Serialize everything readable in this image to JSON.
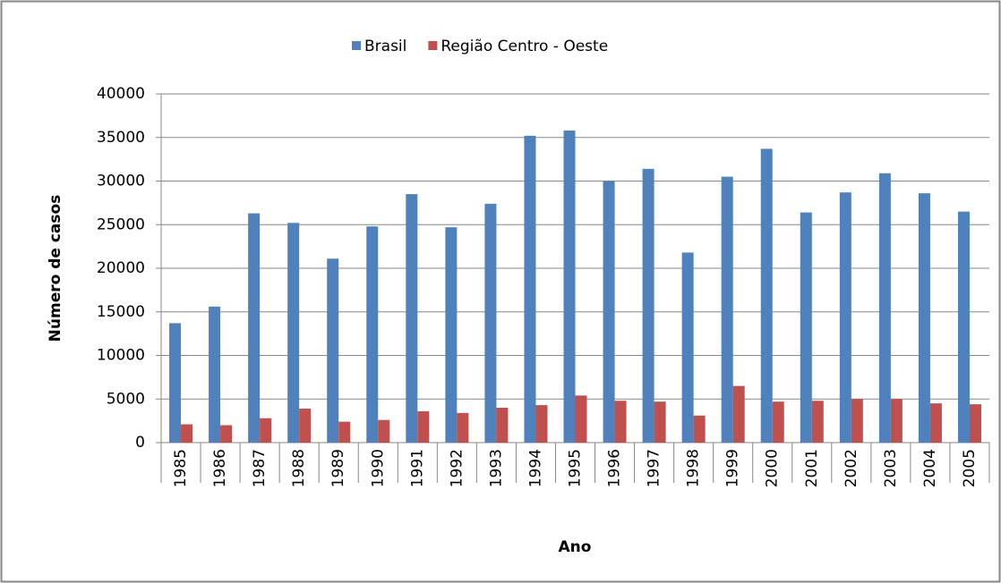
{
  "chart_data": {
    "type": "bar",
    "y_label": "Número de casos",
    "x_label": "Ano",
    "categories": [
      "1985",
      "1986",
      "1987",
      "1988",
      "1989",
      "1990",
      "1991",
      "1992",
      "1993",
      "1994",
      "1995",
      "1996",
      "1997",
      "1998",
      "1999",
      "2000",
      "2001",
      "2002",
      "2003",
      "2004",
      "2005"
    ],
    "series": [
      {
        "name": "Brasil",
        "color": "#4f81bd",
        "values": [
          13700,
          15600,
          26300,
          25200,
          21100,
          24800,
          28500,
          24700,
          27400,
          35200,
          35800,
          30000,
          31400,
          21800,
          30500,
          33700,
          26400,
          28700,
          30900,
          28600,
          26500
        ]
      },
      {
        "name": "Região Centro - Oeste",
        "color": "#c0504d",
        "values": [
          2100,
          2000,
          2800,
          3900,
          2400,
          2600,
          3600,
          3400,
          4000,
          4300,
          5400,
          4800,
          4700,
          3100,
          6500,
          4700,
          4800,
          5000,
          5000,
          4500,
          4400
        ]
      }
    ],
    "ylim": [
      0,
      40000
    ],
    "yticks": [
      0,
      5000,
      10000,
      15000,
      20000,
      25000,
      30000,
      35000,
      40000
    ],
    "grid": true,
    "legend": "top"
  }
}
